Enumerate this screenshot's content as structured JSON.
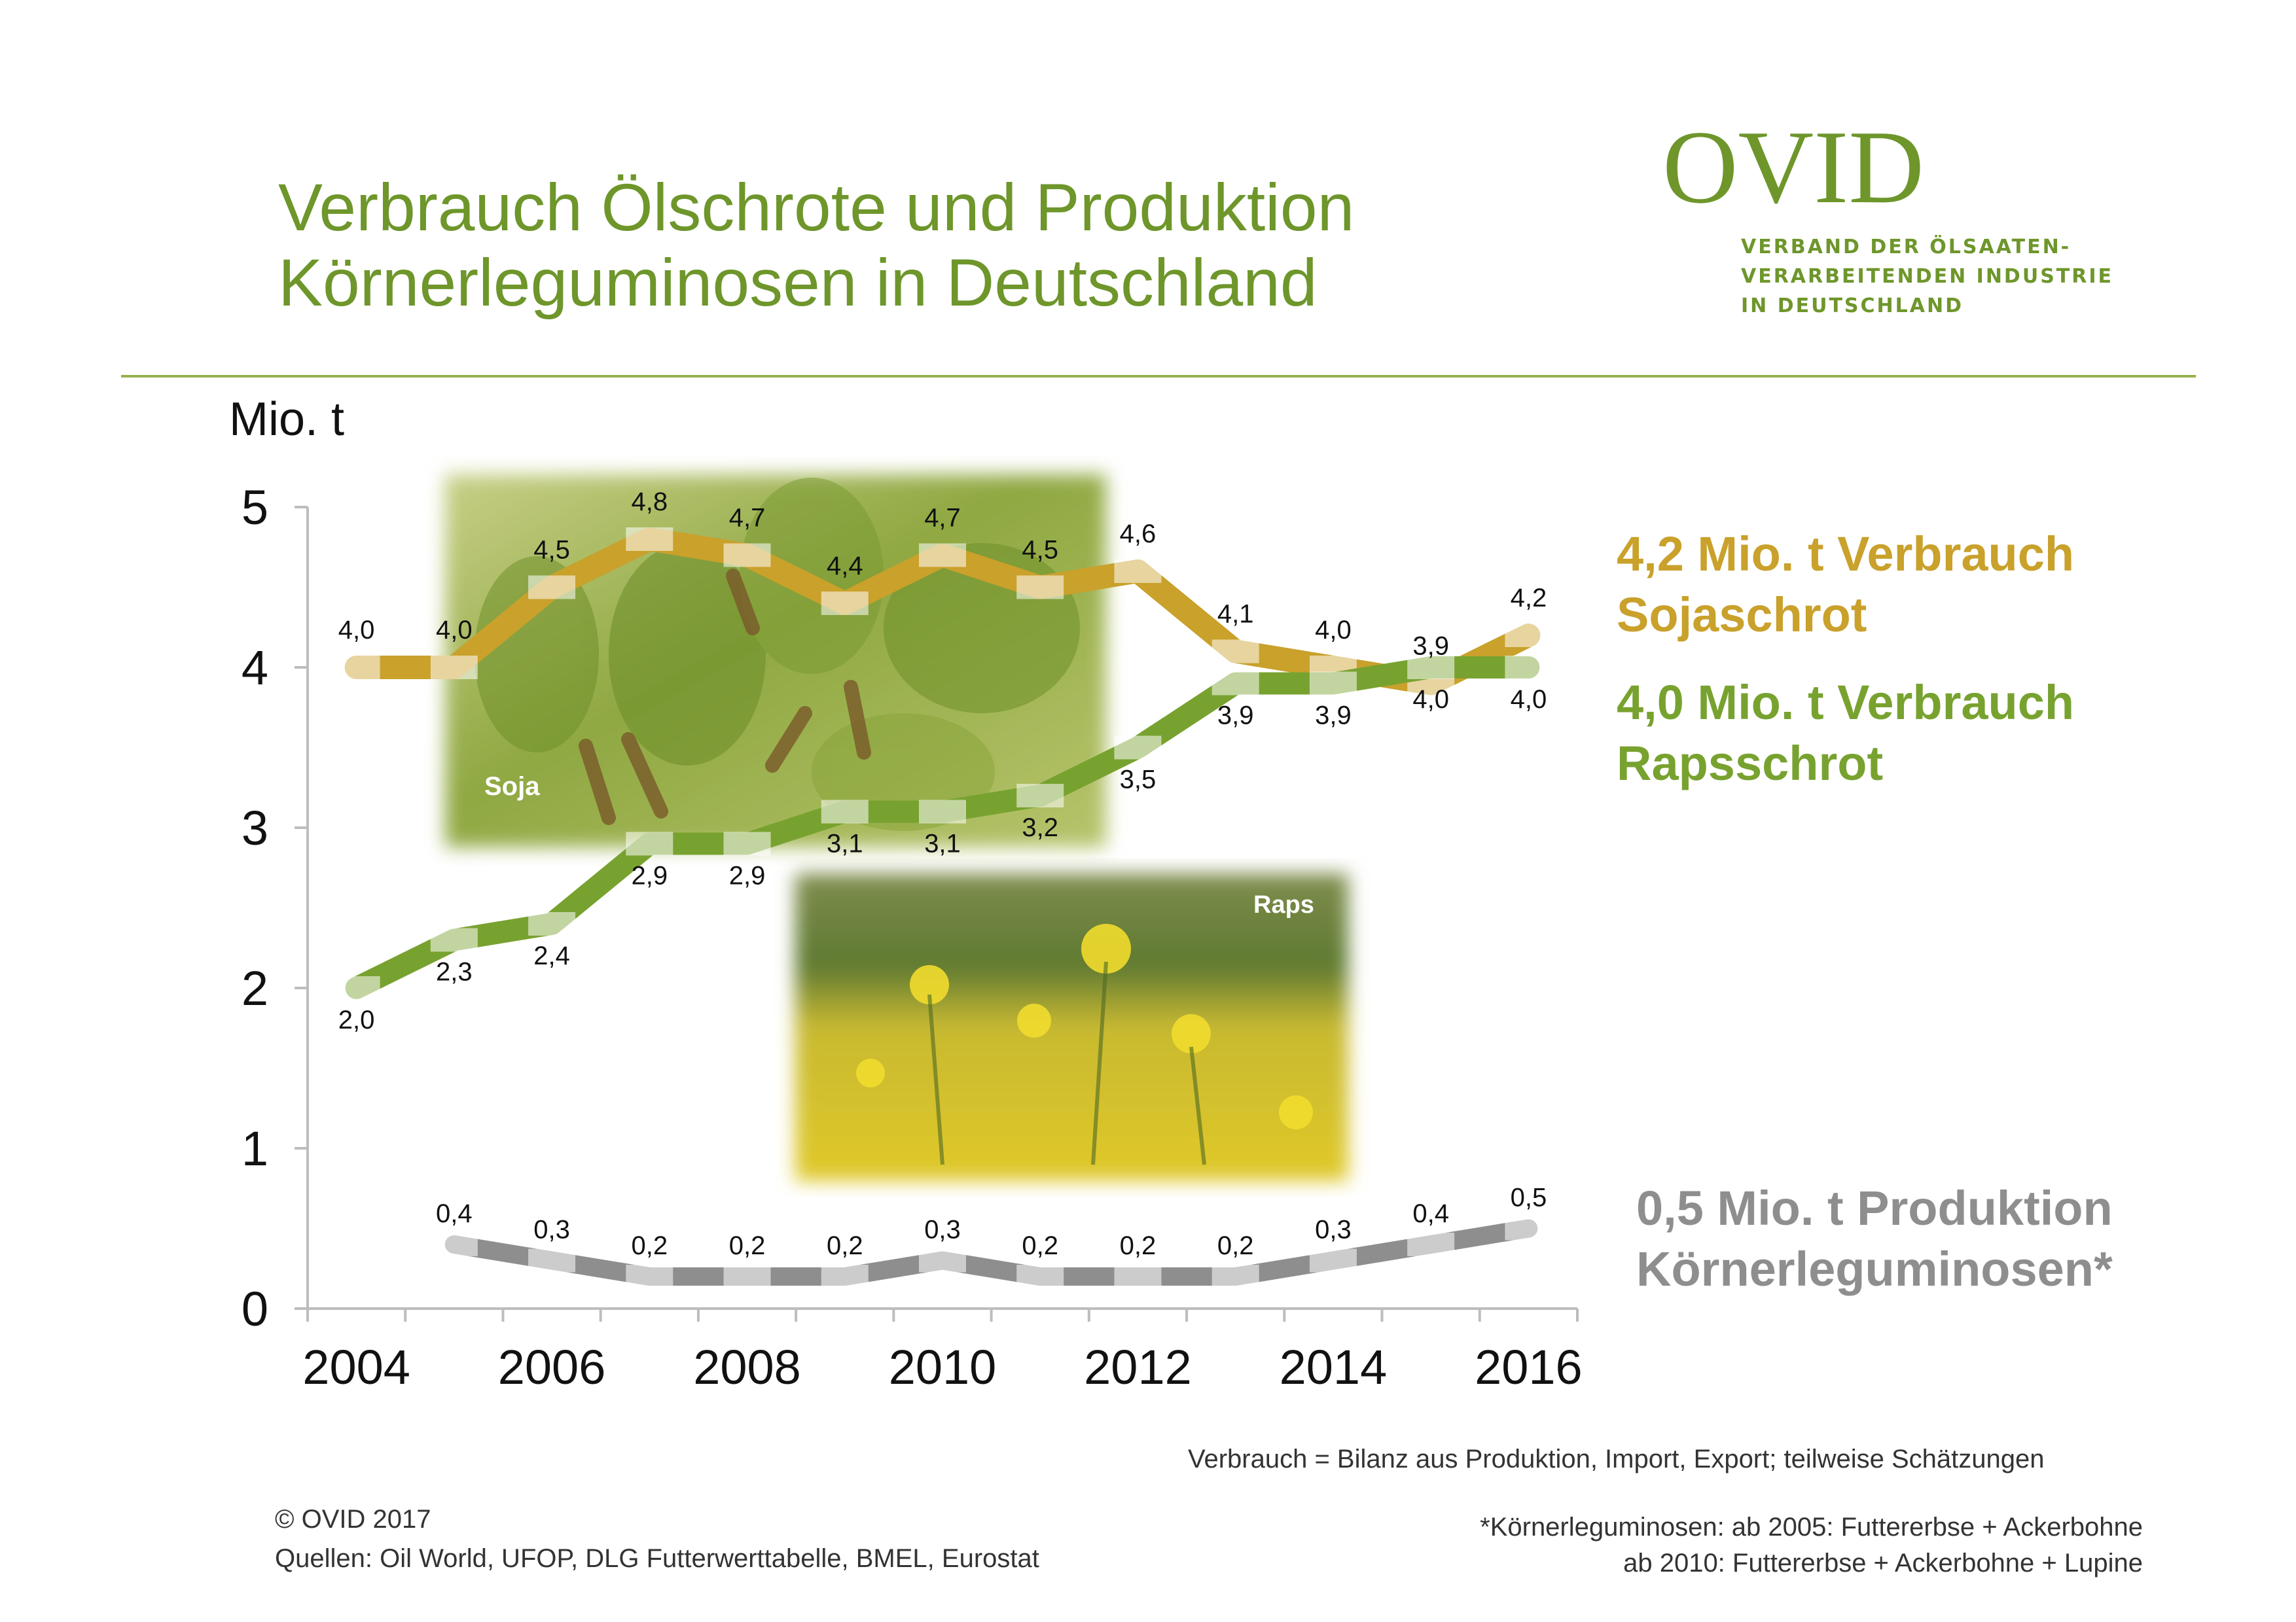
{
  "header": {
    "title_line1": "Verbrauch Ölschrote und Produktion",
    "title_line2": "Körnerleguminosen in Deutschland"
  },
  "logo": {
    "wordmark": "OVID",
    "sub_line1": "VERBAND DER ÖLSAATEN-",
    "sub_line2": "VERARBEITENDEN INDUSTRIE",
    "sub_line3": "IN DEUTSCHLAND"
  },
  "images": {
    "soja_label": "Soja",
    "raps_label": "Raps"
  },
  "legend": {
    "soja_line1": "4,2 Mio. t Verbrauch",
    "soja_line2": "Sojaschrot",
    "raps_line1": "4,0 Mio. t Verbrauch",
    "raps_line2": "Rapsschrot",
    "leg_line1": "0,5 Mio. t Produktion",
    "leg_line2": "Körnerleguminosen*"
  },
  "footer": {
    "note_verbrauch": "Verbrauch = Bilanz aus Produktion, Import, Export;  teilweise Schätzungen",
    "copyright": "© OVID 2017",
    "sources": "Quellen: Oil World, UFOP, DLG Futterwerttabelle, BMEL, Eurostat",
    "note_leg1": "*Körnerleguminosen: ab 2005: Futtererbse + Ackerbohne",
    "note_leg2": "ab 2010: Futtererbse + Ackerbohne + Lupine"
  },
  "colors": {
    "soja": "#c9a12b",
    "raps": "#78a22f",
    "leguminosen": "#8e8e8e",
    "title": "#6e962b"
  },
  "chart_data": {
    "type": "line",
    "ylabel": "Mio. t",
    "ylim": [
      0,
      5
    ],
    "yticks": [
      0,
      1,
      2,
      3,
      4,
      5
    ],
    "xlim": [
      2003,
      2016
    ],
    "xticks": [
      2004,
      2006,
      2008,
      2010,
      2012,
      2014,
      2016
    ],
    "grid": false,
    "series": [
      {
        "name": "Sojaschrot",
        "x": [
          2004,
          2005,
          2006,
          2007,
          2008,
          2009,
          2010,
          2011,
          2012,
          2013,
          2014,
          2015,
          2016
        ],
        "values": [
          4.0,
          4.0,
          4.5,
          4.8,
          4.7,
          4.4,
          4.7,
          4.5,
          4.6,
          4.1,
          4.0,
          3.9,
          4.2
        ],
        "labels": [
          "4,0",
          "4,0",
          "4,5",
          "4,8",
          "4,7",
          "4,4",
          "4,7",
          "4,5",
          "4,6",
          "4,1",
          "4,0",
          "3,9",
          "4,2"
        ]
      },
      {
        "name": "Rapsschrot",
        "x": [
          2004,
          2005,
          2006,
          2007,
          2008,
          2009,
          2010,
          2011,
          2012,
          2013,
          2014,
          2015,
          2016
        ],
        "values": [
          2.0,
          2.3,
          2.4,
          2.9,
          2.9,
          3.1,
          3.1,
          3.2,
          3.5,
          3.9,
          3.9,
          4.0,
          4.0
        ],
        "labels": [
          "2,0",
          "2,3",
          "2,4",
          "2,9",
          "2,9",
          "3,1",
          "3,1",
          "3,2",
          "3,5",
          "3,9",
          "3,9",
          "4,0",
          "4,0"
        ]
      },
      {
        "name": "Körnerleguminosen",
        "x": [
          2005,
          2006,
          2007,
          2008,
          2009,
          2010,
          2011,
          2012,
          2013,
          2014,
          2015,
          2016
        ],
        "values": [
          0.4,
          0.3,
          0.2,
          0.2,
          0.2,
          0.3,
          0.2,
          0.2,
          0.2,
          0.3,
          0.4,
          0.5
        ],
        "labels": [
          "0,4",
          "0,3",
          "0,2",
          "0,2",
          "0,2",
          "0,3",
          "0,2",
          "0,2",
          "0,2",
          "0,3",
          "0,4",
          "0,5"
        ]
      }
    ]
  }
}
